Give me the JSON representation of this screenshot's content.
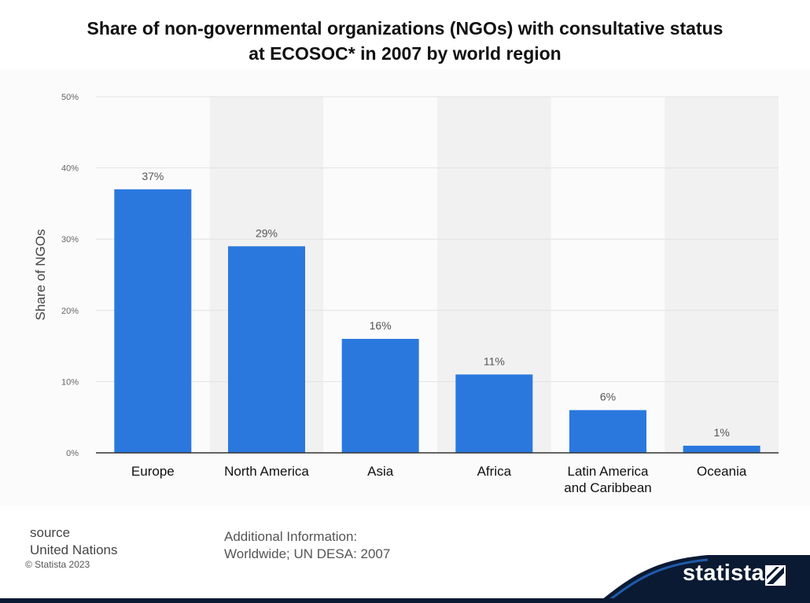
{
  "title_line1": "Share of non-governmental organizations (NGOs) with consultative status",
  "title_line2": "at ECOSOC* in 2007 by world region",
  "footer": {
    "source_heading": "source",
    "source_name": "United Nations",
    "copyright": "© Statista 2023",
    "info_heading": "Additional Information:",
    "info_text": "Worldwide; UN DESA: 2007"
  },
  "brand": {
    "name": "statista"
  },
  "colors": {
    "bar": "#2a78de",
    "axis": "#333333",
    "grid": "#e2e2e2",
    "band": "#f1f1f1",
    "brand_dark": "#0b1a33"
  },
  "chart_data": {
    "type": "bar",
    "categories": [
      "Europe",
      "North America",
      "Asia",
      "Africa",
      "Latin America and Caribbean",
      "Oceania"
    ],
    "category_lines": [
      [
        "Europe"
      ],
      [
        "North America"
      ],
      [
        "Asia"
      ],
      [
        "Africa"
      ],
      [
        "Latin America",
        "and Caribbean"
      ],
      [
        "Oceania"
      ]
    ],
    "values": [
      37,
      29,
      16,
      11,
      6,
      1
    ],
    "data_labels": [
      "37%",
      "29%",
      "16%",
      "11%",
      "6%",
      "1%"
    ],
    "ylabel": "Share of NGOs",
    "xlabel": "",
    "ylim": [
      0,
      50
    ],
    "yticks": [
      0,
      10,
      20,
      30,
      40,
      50
    ],
    "ytick_labels": [
      "0%",
      "10%",
      "20%",
      "30%",
      "40%",
      "50%"
    ],
    "grid": true,
    "alternating_bands": true
  }
}
